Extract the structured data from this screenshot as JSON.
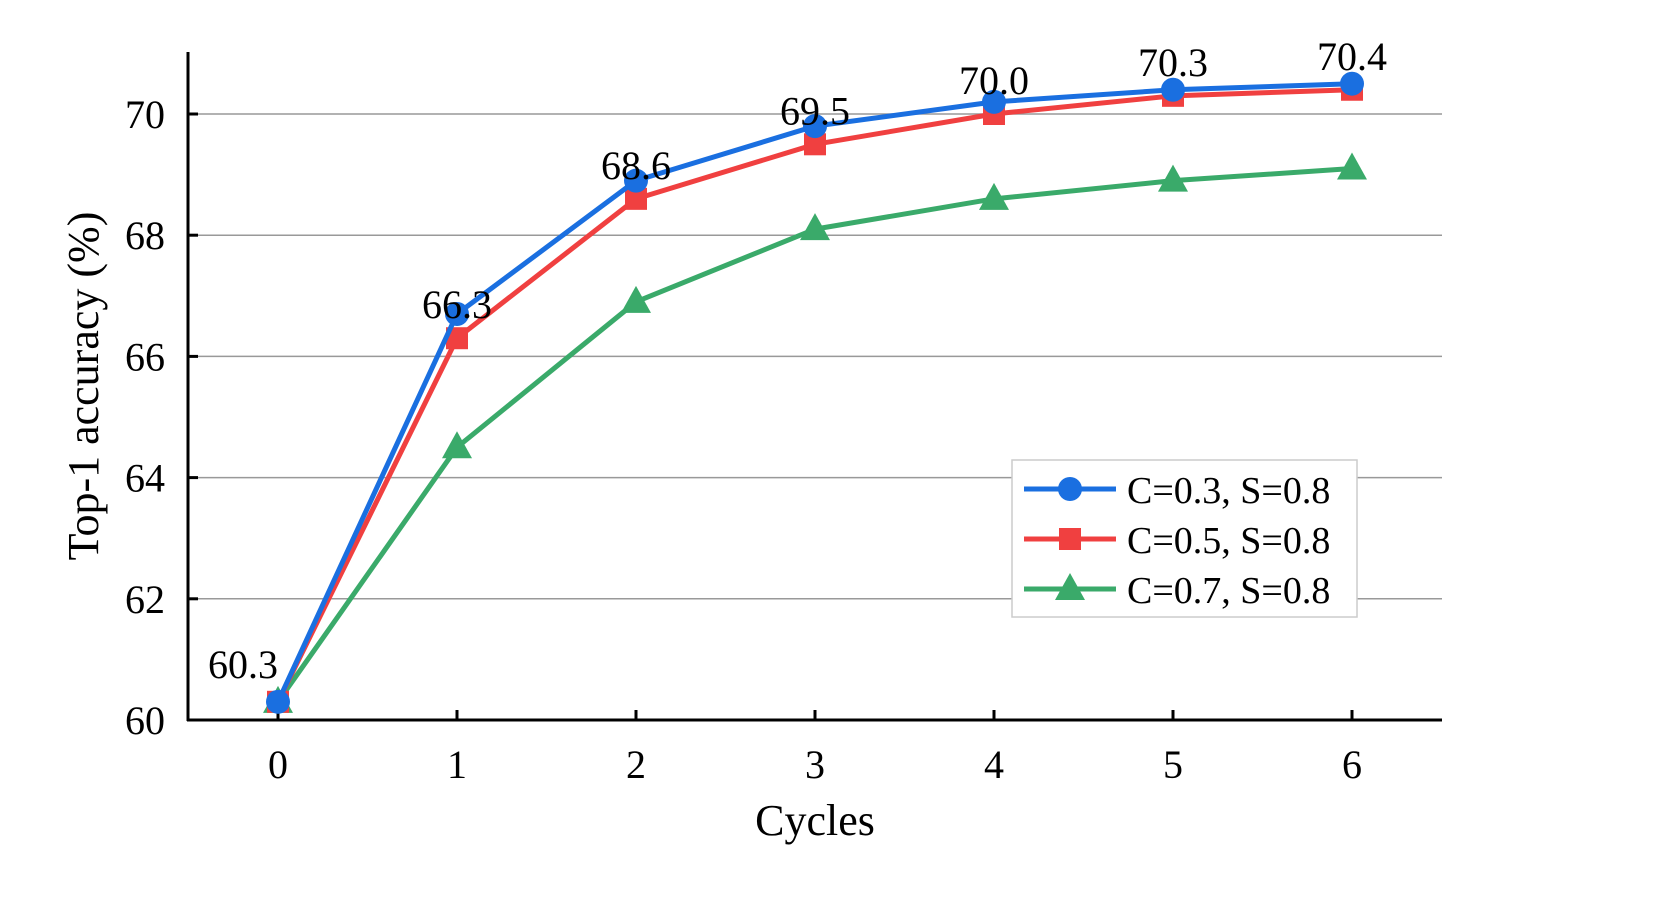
{
  "chart_data": {
    "type": "line",
    "xlabel": "Cycles",
    "ylabel": "Top-1 accuracy (%)",
    "x": [
      0,
      1,
      2,
      3,
      4,
      5,
      6
    ],
    "xticks": [
      "0",
      "1",
      "2",
      "3",
      "4",
      "5",
      "6"
    ],
    "yticks": [
      "60",
      "62",
      "64",
      "66",
      "68",
      "70"
    ],
    "ylim": [
      60,
      71
    ],
    "grid": "horizontal",
    "legend_position": "bottom-right",
    "series": [
      {
        "name": "C=0.3, S=0.8",
        "color": "#1a6fe0",
        "marker": "circle",
        "values": [
          60.3,
          66.7,
          68.9,
          69.8,
          70.2,
          70.4,
          70.5
        ]
      },
      {
        "name": "C=0.5, S=0.8",
        "color": "#f04040",
        "marker": "square",
        "values": [
          60.3,
          66.3,
          68.6,
          69.5,
          70.0,
          70.3,
          70.4
        ]
      },
      {
        "name": "C=0.7, S=0.8",
        "color": "#3aaa6a",
        "marker": "triangle",
        "values": [
          60.3,
          64.5,
          66.9,
          68.1,
          68.6,
          68.9,
          69.1
        ]
      }
    ],
    "data_labels": [
      "60.3",
      "66.3",
      "68.6",
      "69.5",
      "70.0",
      "70.3",
      "70.4"
    ]
  }
}
